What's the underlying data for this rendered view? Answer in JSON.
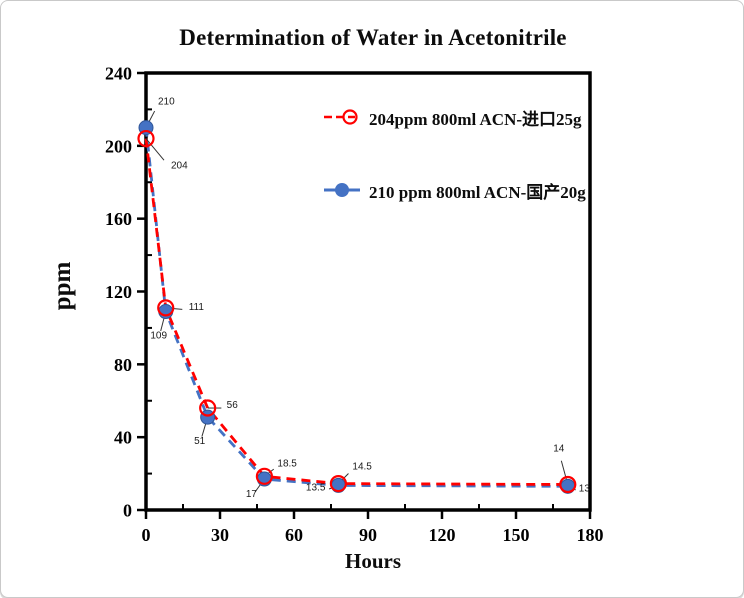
{
  "chart_data": {
    "type": "line",
    "title": "Determination of Water in Acetonitrile",
    "xlabel": "Hours",
    "ylabel": "ppm",
    "xlim": [
      0,
      180
    ],
    "ylim": [
      0,
      240
    ],
    "x_major_ticks": [
      0,
      30,
      60,
      90,
      120,
      150,
      180
    ],
    "x_minor_step": 15,
    "y_major_ticks": [
      0,
      40,
      80,
      120,
      160,
      200,
      240
    ],
    "y_minor_step": 20,
    "grid": false,
    "legend_position": "inside-upper-right",
    "series": [
      {
        "name": "204ppm  800ml ACN-进口25g",
        "color": "#ff0000",
        "line_style": "dashed",
        "marker": "open-circle",
        "x": [
          0,
          8,
          25,
          48,
          78,
          171
        ],
        "y": [
          204,
          111,
          56,
          18.5,
          14.5,
          14
        ],
        "annotations": [
          {
            "text": "204",
            "dx": 25,
            "dy": 30,
            "anchor": "start"
          },
          {
            "text": "111",
            "dx": 23,
            "dy": 2,
            "anchor": "start"
          },
          {
            "text": "56",
            "dx": 19,
            "dy": 0,
            "anchor": "start"
          },
          {
            "text": "18.5",
            "dx": 13,
            "dy": -10,
            "anchor": "start"
          },
          {
            "text": "14.5",
            "dx": 14,
            "dy": -14,
            "anchor": "start"
          },
          {
            "text": "14",
            "dx": -9,
            "dy": -33,
            "anchor": "middle"
          }
        ]
      },
      {
        "name": "210 ppm 800ml ACN-国产20g",
        "color": "#4472c4",
        "line_style": "dashed",
        "marker": "filled-circle",
        "x": [
          0,
          8,
          25,
          48,
          78,
          171
        ],
        "y": [
          210,
          109,
          51,
          17,
          13.5,
          13
        ],
        "annotations": [
          {
            "text": "210",
            "dx": 12,
            "dy": -23,
            "anchor": "start"
          },
          {
            "text": "109",
            "dx": -7,
            "dy": 27,
            "anchor": "middle"
          },
          {
            "text": "51",
            "dx": -8,
            "dy": 27,
            "anchor": "middle"
          },
          {
            "text": "17",
            "dx": -13,
            "dy": 18,
            "anchor": "middle"
          },
          {
            "text": "13.5",
            "dx": -13,
            "dy": 5,
            "anchor": "end"
          },
          {
            "text": "13",
            "dx": 11,
            "dy": 5,
            "anchor": "start"
          }
        ]
      }
    ]
  }
}
